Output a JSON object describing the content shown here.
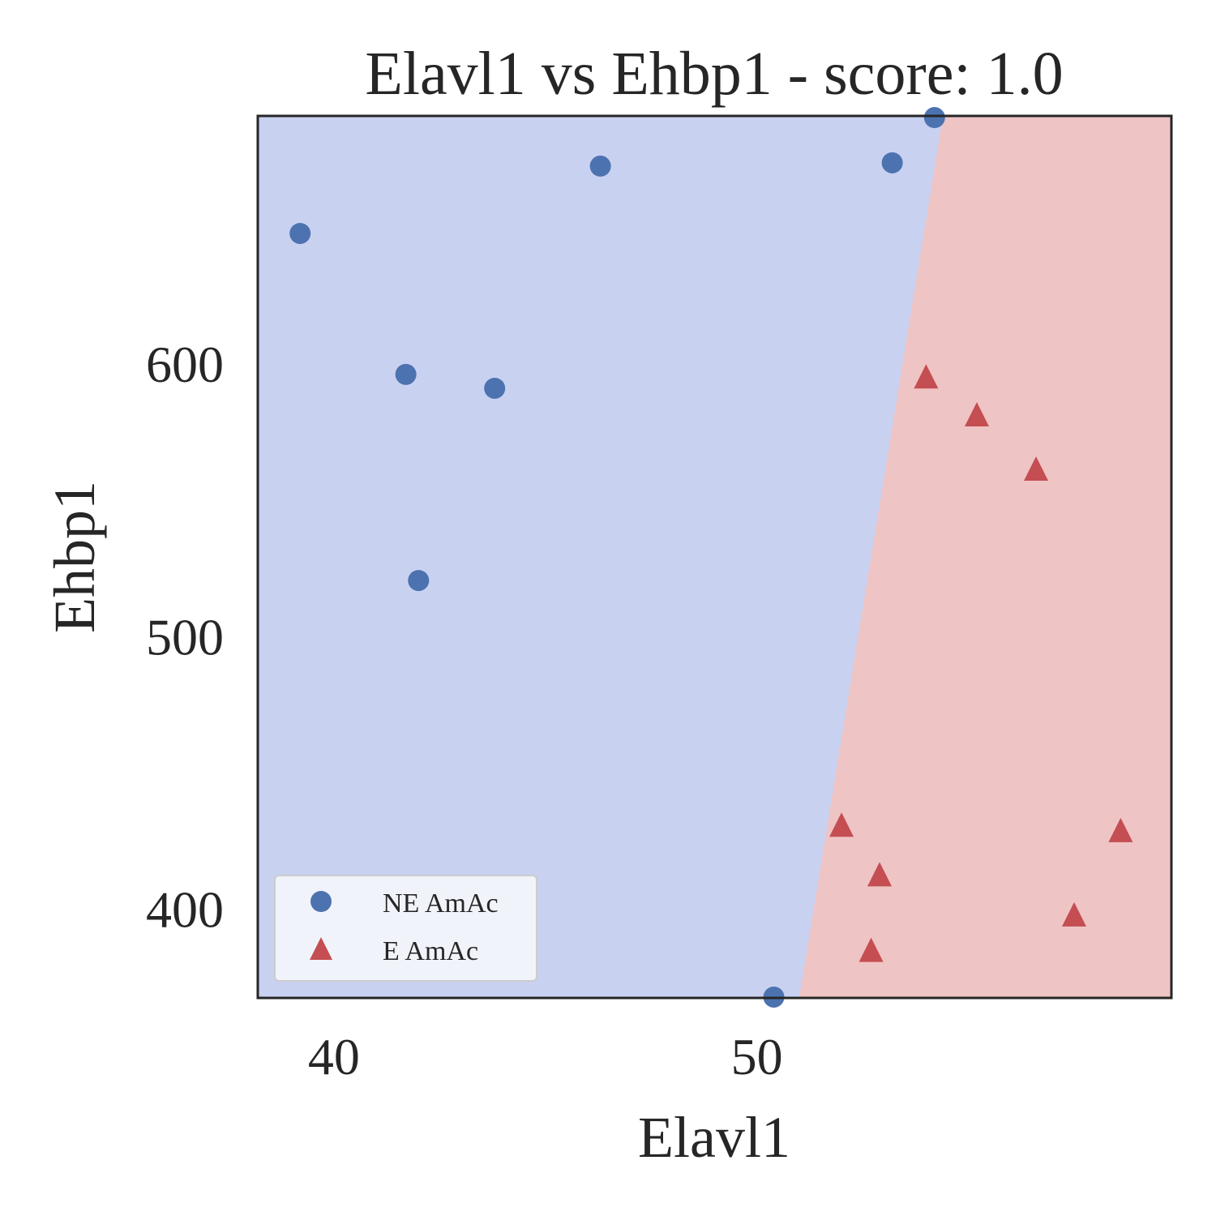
{
  "chart_data": {
    "type": "scatter",
    "title": "Elavl1 vs Ehbp1 - score: 1.0",
    "xlabel": "Elavl1",
    "ylabel": "Ehbp1",
    "xlim": [
      38.2,
      59.8
    ],
    "ylim": [
      367.5,
      691.0
    ],
    "x_ticks": [
      40,
      50
    ],
    "y_ticks": [
      400,
      500,
      600
    ],
    "grid": false,
    "legend": "lower-left",
    "decision_boundary": [
      [
        51.0,
        367.5
      ],
      [
        54.4,
        691.0
      ]
    ],
    "regions": [
      {
        "name": "NE AmAc",
        "side": "left",
        "color": "#c9d1f1"
      },
      {
        "name": "E AmAc",
        "side": "right",
        "color": "#efc4c4"
      }
    ],
    "series": [
      {
        "name": "NE AmAc",
        "marker": "circle",
        "color": "#4c72b0",
        "points": [
          [
            39.2,
            647.9
          ],
          [
            41.7,
            596.2
          ],
          [
            42.0,
            520.6
          ],
          [
            43.8,
            591.1
          ],
          [
            46.3,
            672.6
          ],
          [
            50.4,
            367.8
          ],
          [
            53.2,
            673.8
          ],
          [
            54.2,
            690.4
          ]
        ]
      },
      {
        "name": "E AmAc",
        "marker": "triangle",
        "color": "#c44e52",
        "points": [
          [
            52.0,
            430.0
          ],
          [
            52.9,
            411.8
          ],
          [
            52.7,
            384.1
          ],
          [
            54.0,
            594.4
          ],
          [
            55.2,
            580.5
          ],
          [
            56.6,
            560.6
          ],
          [
            57.5,
            397.1
          ],
          [
            58.6,
            428.0
          ]
        ]
      }
    ]
  }
}
